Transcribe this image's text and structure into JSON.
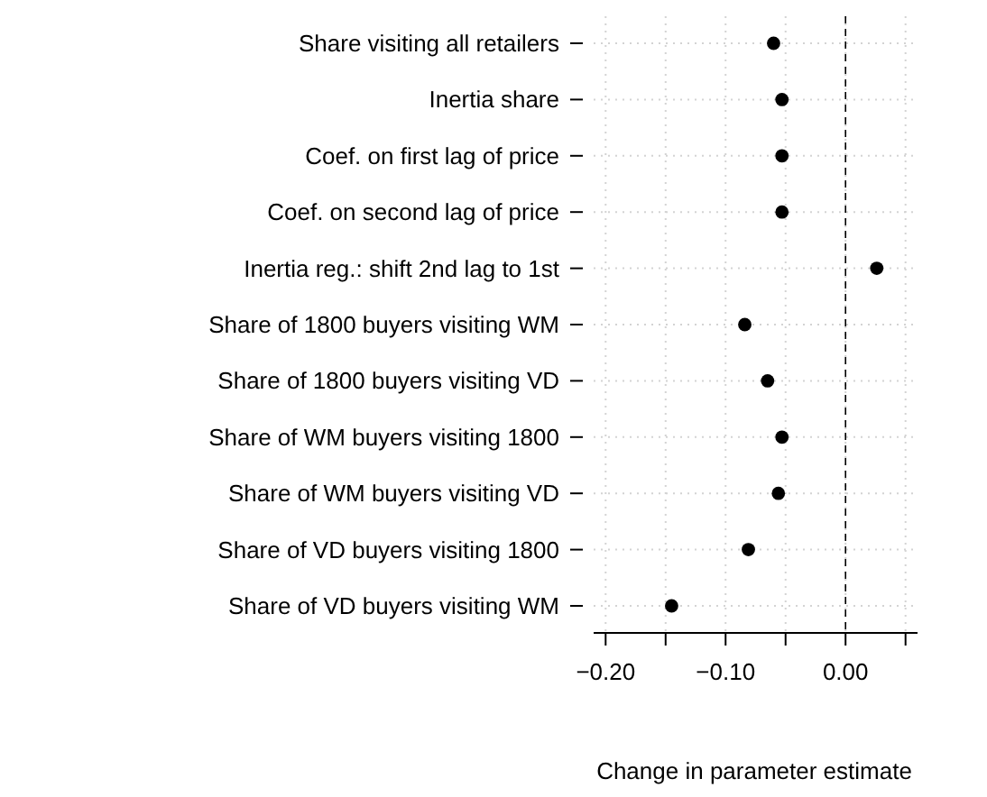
{
  "chart_data": {
    "type": "scatter",
    "orientation": "horizontal",
    "xlabel": "Change in parameter estimate",
    "categories": [
      "Share visiting all retailers",
      "Inertia share",
      "Coef. on first lag of price",
      "Coef. on second lag of price",
      "Inertia reg.: shift 2nd lag to 1st",
      "Share of 1800 buyers visiting WM",
      "Share of 1800 buyers visiting VD",
      "Share of WM buyers visiting 1800",
      "Share of WM buyers visiting VD",
      "Share of VD buyers visiting 1800",
      "Share of VD buyers visiting WM"
    ],
    "series": [
      {
        "color": "#000000",
        "values": [
          -0.06,
          -0.053,
          -0.053,
          -0.053,
          0.026,
          -0.084,
          -0.065,
          -0.053,
          -0.056,
          -0.081,
          -0.145
        ]
      }
    ],
    "xlim": [
      -0.21,
      0.06
    ],
    "xticks": [
      {
        "value": -0.2,
        "label": "−0.20"
      },
      {
        "value": -0.15,
        "label": null
      },
      {
        "value": -0.1,
        "label": "−0.10"
      },
      {
        "value": -0.05,
        "label": null
      },
      {
        "value": 0,
        "label": "0.00"
      },
      {
        "value": 0.05,
        "label": null
      }
    ],
    "ref_lines": [
      {
        "axis": "x",
        "value": 0,
        "color": "#000000",
        "line_style": "dashed"
      }
    ],
    "grid": true,
    "marker": "circle"
  }
}
